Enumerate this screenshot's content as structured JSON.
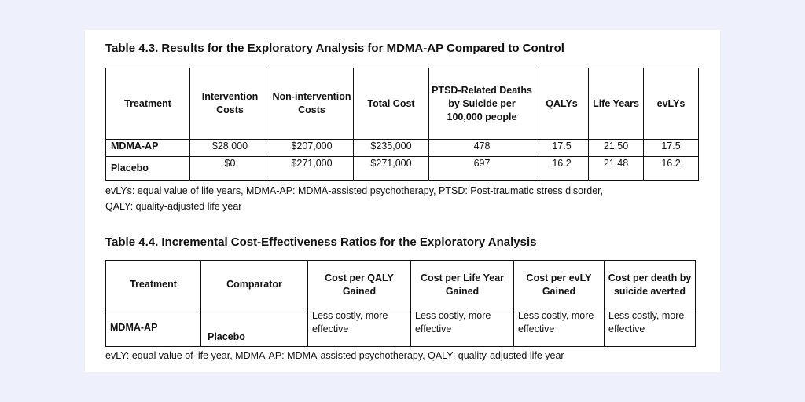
{
  "table43": {
    "title": "Table 4.3. Results for the Exploratory Analysis for MDMA-AP Compared to Control",
    "headers": [
      "Treatment",
      "Intervention Costs",
      "Non-intervention Costs",
      "Total Cost",
      "PTSD-Related Deaths by Suicide per 100,000 people",
      "QALYs",
      "Life Years",
      "evLYs"
    ],
    "rows": [
      [
        "MDMA-AP",
        "$28,000",
        "$207,000",
        "$235,000",
        "478",
        "17.5",
        "21.50",
        "17.5"
      ],
      [
        "Placebo",
        "$0",
        "$271,000",
        "$271,000",
        "697",
        "16.2",
        "21.48",
        "16.2"
      ]
    ],
    "note_line1": "evLYs: equal value of life years, MDMA-AP: MDMA-assisted psychotherapy, PTSD: Post-traumatic stress disorder,",
    "note_line2": "QALY: quality-adjusted life year"
  },
  "table44": {
    "title": "Table 4.4. Incremental Cost-Effectiveness Ratios for the Exploratory Analysis",
    "headers": [
      "Treatment",
      "Comparator",
      "Cost per QALY Gained",
      "Cost per Life Year Gained",
      "Cost per evLY Gained",
      "Cost per death by suicide averted"
    ],
    "rows": [
      [
        "MDMA-AP",
        "Placebo",
        "Less costly, more effective",
        "Less costly, more effective",
        "Less costly, more effective",
        "Less costly, more effective"
      ]
    ],
    "note": "evLY: equal value of life year, MDMA-AP: MDMA-assisted psychotherapy, QALY: quality-adjusted life year"
  }
}
